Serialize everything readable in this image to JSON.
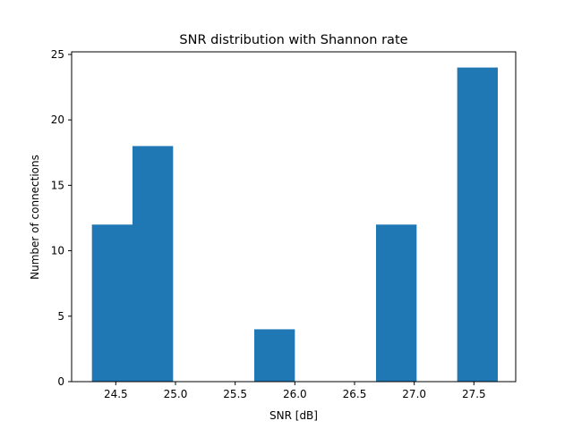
{
  "chart_data": {
    "type": "bar",
    "title": "SNR distribution with Shannon rate",
    "xlabel": "SNR [dB]",
    "ylabel": "Number of connections",
    "xlim": [
      24.13,
      27.85
    ],
    "ylim": [
      0,
      25.2
    ],
    "xticks": [
      24.5,
      25.0,
      25.5,
      26.0,
      26.5,
      27.0,
      27.5
    ],
    "xtick_labels": [
      "24.5",
      "25.0",
      "25.5",
      "26.0",
      "26.5",
      "27.0",
      "27.5"
    ],
    "yticks": [
      0,
      5,
      10,
      15,
      20,
      25
    ],
    "ytick_labels": [
      "0",
      "5",
      "10",
      "15",
      "20",
      "25"
    ],
    "bin_edges": [
      24.3,
      24.64,
      24.98,
      25.32,
      25.66,
      26.0,
      26.34,
      26.68,
      27.02,
      27.36,
      27.7
    ],
    "counts": [
      12,
      18,
      0,
      0,
      4,
      0,
      0,
      12,
      0,
      24
    ],
    "bar_color": "#1f77b4",
    "grid": false,
    "legend": "none"
  }
}
